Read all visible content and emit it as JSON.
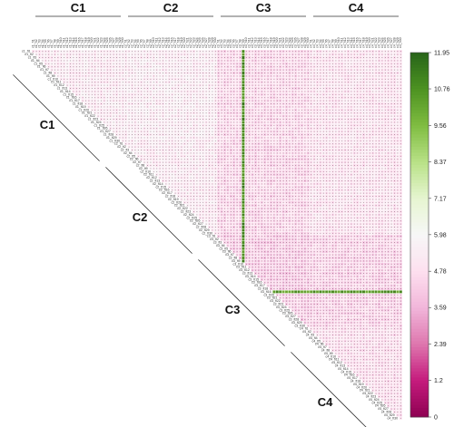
{
  "chart_data": {
    "type": "heatmap",
    "title": "",
    "xlabel": "",
    "ylabel": "",
    "matrix_shape": "upper-triangle",
    "n_per_cluster": 30,
    "clusters": [
      {
        "label": "C1",
        "prefix": "c1"
      },
      {
        "label": "C2",
        "prefix": "c2"
      },
      {
        "label": "C3",
        "prefix": "c3"
      },
      {
        "label": "C4",
        "prefix": "c4"
      }
    ],
    "value_levels": {
      "C1-C1": 5.3,
      "C1-C2": 5.4,
      "C1-C3": 4.6,
      "C1-C4": 5.0,
      "C2-C2": 5.3,
      "C2-C3": 4.5,
      "C2-C4": 5.0,
      "C3-C3": 4.2,
      "C3-C4": 4.4,
      "C4-C4": 4.8
    },
    "highlight": {
      "row_index": 78,
      "col_index": 68,
      "row_value": 11.0,
      "col_value": 11.4,
      "row_label": "c3_fi16"
    },
    "colorbar": {
      "min": 0,
      "max": 11.95,
      "ticks": [
        11.95,
        10.76,
        9.56,
        8.37,
        7.17,
        5.98,
        4.78,
        3.59,
        2.39,
        1.2,
        0
      ],
      "palette": [
        "#8e0152",
        "#c51b7d",
        "#de77ae",
        "#f1b6da",
        "#fde0ef",
        "#f7f7f7",
        "#e6f5d0",
        "#b8e186",
        "#7fbc41",
        "#4d9221",
        "#276419"
      ]
    },
    "grid": true,
    "legend_placement": "right"
  }
}
